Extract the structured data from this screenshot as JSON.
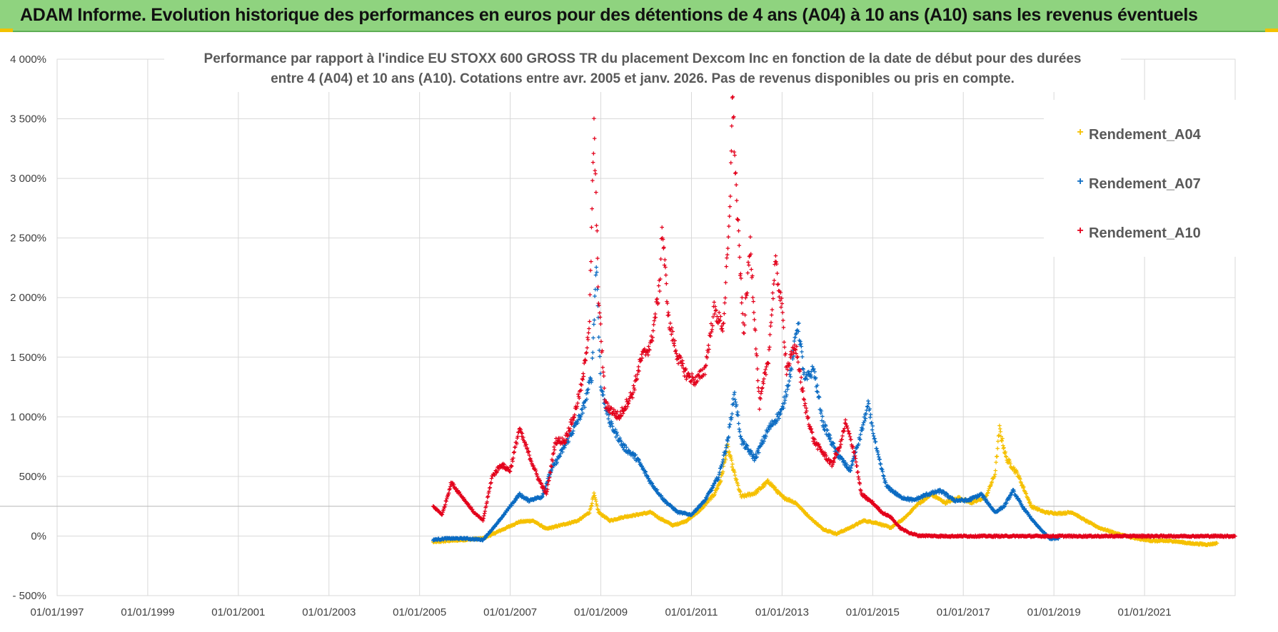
{
  "banner": {
    "title": "ADAM Informe. Evolution historique des performances en euros pour des détentions de 4 ans (A04) à 10 ans (A10) sans les revenus éventuels"
  },
  "colors": {
    "banner_bg": "#8fd37f",
    "series_a04": "#f5c000",
    "series_a07": "#0b6bc2",
    "series_a10": "#e3001b",
    "grid": "#d9d9d9"
  },
  "chart_data": {
    "type": "scatter",
    "title": "Performance par rapport à l'indice EU STOXX 600 GROSS TR  du placement Dexcom Inc en fonction de la date de début pour des durées entre 4 (A04) et 10 ans (A10). Cotations entre avr. 2005 et janv. 2026. Pas de revenus disponibles ou pris en compte.",
    "title_lines": [
      "Performance par rapport à l'indice EU STOXX 600 GROSS TR  du placement Dexcom Inc en fonction de la date de début pour des durées",
      "entre 4 (A04) et 10 ans (A10). Cotations entre avr. 2005 et janv. 2026. Pas de revenus disponibles ou pris en compte."
    ],
    "xlabel": "",
    "ylabel": "",
    "xlim": [
      1997.0,
      2023.0
    ],
    "ylim": [
      -500,
      4000
    ],
    "x_ticks": [
      1997,
      1999,
      2001,
      2003,
      2005,
      2007,
      2009,
      2011,
      2013,
      2015,
      2017,
      2019,
      2021
    ],
    "x_tick_labels": [
      "01/01/1997",
      "01/01/1999",
      "01/01/2001",
      "01/01/2003",
      "01/01/2005",
      "01/01/2007",
      "01/01/2009",
      "01/01/2011",
      "01/01/2013",
      "01/01/2015",
      "01/01/2017",
      "01/01/2019",
      "01/01/2021"
    ],
    "y_ticks": [
      -500,
      0,
      500,
      1000,
      1500,
      2000,
      2500,
      3000,
      3500,
      4000
    ],
    "y_tick_labels": [
      "- 500%",
      "0%",
      "500%",
      "1 000%",
      "1 500%",
      "2 000%",
      "2 500%",
      "3 000%",
      "3 500%",
      "4 000%"
    ],
    "reference_line_y": 250,
    "grid": true,
    "legend_position": "top-right",
    "series": [
      {
        "name": "Rendement_A04",
        "color": "#f5c000",
        "points": [
          [
            2005.3,
            -50
          ],
          [
            2005.6,
            -40
          ],
          [
            2006.0,
            -30
          ],
          [
            2006.4,
            -20
          ],
          [
            2006.8,
            50
          ],
          [
            2007.2,
            120
          ],
          [
            2007.5,
            130
          ],
          [
            2007.8,
            60
          ],
          [
            2008.2,
            100
          ],
          [
            2008.5,
            130
          ],
          [
            2008.75,
            200
          ],
          [
            2008.85,
            350
          ],
          [
            2008.95,
            200
          ],
          [
            2009.2,
            130
          ],
          [
            2009.5,
            160
          ],
          [
            2009.8,
            180
          ],
          [
            2010.1,
            200
          ],
          [
            2010.3,
            150
          ],
          [
            2010.6,
            90
          ],
          [
            2010.9,
            130
          ],
          [
            2011.2,
            220
          ],
          [
            2011.5,
            350
          ],
          [
            2011.65,
            470
          ],
          [
            2011.8,
            750
          ],
          [
            2011.95,
            520
          ],
          [
            2012.1,
            330
          ],
          [
            2012.4,
            360
          ],
          [
            2012.7,
            460
          ],
          [
            2013.0,
            330
          ],
          [
            2013.3,
            280
          ],
          [
            2013.6,
            160
          ],
          [
            2013.9,
            60
          ],
          [
            2014.2,
            20
          ],
          [
            2014.5,
            70
          ],
          [
            2014.8,
            130
          ],
          [
            2015.1,
            110
          ],
          [
            2015.4,
            70
          ],
          [
            2015.7,
            150
          ],
          [
            2016.0,
            270
          ],
          [
            2016.3,
            350
          ],
          [
            2016.6,
            280
          ],
          [
            2016.9,
            320
          ],
          [
            2017.2,
            280
          ],
          [
            2017.5,
            330
          ],
          [
            2017.7,
            520
          ],
          [
            2017.8,
            900
          ],
          [
            2017.95,
            650
          ],
          [
            2018.2,
            520
          ],
          [
            2018.5,
            250
          ],
          [
            2018.8,
            200
          ],
          [
            2019.1,
            190
          ],
          [
            2019.4,
            200
          ],
          [
            2019.7,
            130
          ],
          [
            2020.0,
            70
          ],
          [
            2020.4,
            20
          ],
          [
            2020.8,
            -20
          ],
          [
            2021.2,
            -40
          ],
          [
            2021.6,
            -40
          ],
          [
            2022.0,
            -60
          ],
          [
            2022.4,
            -70
          ],
          [
            2022.6,
            -60
          ]
        ]
      },
      {
        "name": "Rendement_A07",
        "color": "#0b6bc2",
        "points": [
          [
            2005.3,
            -30
          ],
          [
            2005.6,
            -20
          ],
          [
            2006.0,
            -20
          ],
          [
            2006.4,
            -30
          ],
          [
            2006.7,
            100
          ],
          [
            2007.0,
            250
          ],
          [
            2007.2,
            350
          ],
          [
            2007.4,
            300
          ],
          [
            2007.7,
            330
          ],
          [
            2007.9,
            550
          ],
          [
            2008.1,
            680
          ],
          [
            2008.4,
            900
          ],
          [
            2008.6,
            1050
          ],
          [
            2008.8,
            1350
          ],
          [
            2008.9,
            2300
          ],
          [
            2009.0,
            1250
          ],
          [
            2009.2,
            950
          ],
          [
            2009.5,
            750
          ],
          [
            2009.8,
            650
          ],
          [
            2010.1,
            450
          ],
          [
            2010.4,
            300
          ],
          [
            2010.7,
            200
          ],
          [
            2011.0,
            180
          ],
          [
            2011.3,
            300
          ],
          [
            2011.6,
            500
          ],
          [
            2011.8,
            800
          ],
          [
            2011.95,
            1200
          ],
          [
            2012.1,
            800
          ],
          [
            2012.4,
            650
          ],
          [
            2012.7,
            900
          ],
          [
            2013.0,
            1050
          ],
          [
            2013.2,
            1400
          ],
          [
            2013.35,
            1800
          ],
          [
            2013.5,
            1300
          ],
          [
            2013.7,
            1400
          ],
          [
            2013.9,
            950
          ],
          [
            2014.2,
            700
          ],
          [
            2014.5,
            550
          ],
          [
            2014.7,
            800
          ],
          [
            2014.9,
            1100
          ],
          [
            2015.1,
            700
          ],
          [
            2015.3,
            420
          ],
          [
            2015.6,
            330
          ],
          [
            2015.9,
            300
          ],
          [
            2016.2,
            350
          ],
          [
            2016.5,
            380
          ],
          [
            2016.8,
            300
          ],
          [
            2017.1,
            300
          ],
          [
            2017.4,
            350
          ],
          [
            2017.7,
            200
          ],
          [
            2017.9,
            250
          ],
          [
            2018.1,
            380
          ],
          [
            2018.3,
            250
          ],
          [
            2018.6,
            100
          ],
          [
            2018.9,
            -20
          ],
          [
            2019.1,
            -20
          ]
        ]
      },
      {
        "name": "Rendement_A10",
        "color": "#e3001b",
        "points": [
          [
            2005.3,
            250
          ],
          [
            2005.5,
            180
          ],
          [
            2005.7,
            450
          ],
          [
            2006.0,
            300
          ],
          [
            2006.2,
            200
          ],
          [
            2006.4,
            130
          ],
          [
            2006.6,
            500
          ],
          [
            2006.8,
            600
          ],
          [
            2007.0,
            550
          ],
          [
            2007.2,
            900
          ],
          [
            2007.4,
            700
          ],
          [
            2007.6,
            500
          ],
          [
            2007.8,
            350
          ],
          [
            2008.0,
            800
          ],
          [
            2008.2,
            800
          ],
          [
            2008.4,
            1000
          ],
          [
            2008.6,
            1300
          ],
          [
            2008.75,
            1800
          ],
          [
            2008.85,
            3450
          ],
          [
            2008.95,
            2000
          ],
          [
            2009.1,
            1100
          ],
          [
            2009.4,
            1000
          ],
          [
            2009.7,
            1200
          ],
          [
            2009.9,
            1500
          ],
          [
            2010.1,
            1600
          ],
          [
            2010.3,
            2100
          ],
          [
            2010.35,
            2600
          ],
          [
            2010.5,
            1800
          ],
          [
            2010.7,
            1500
          ],
          [
            2010.9,
            1350
          ],
          [
            2011.1,
            1300
          ],
          [
            2011.3,
            1400
          ],
          [
            2011.5,
            1900
          ],
          [
            2011.7,
            1750
          ],
          [
            2011.85,
            2700
          ],
          [
            2011.9,
            3720
          ],
          [
            2012.0,
            2800
          ],
          [
            2012.15,
            1700
          ],
          [
            2012.3,
            2450
          ],
          [
            2012.5,
            1100
          ],
          [
            2012.7,
            1500
          ],
          [
            2012.85,
            2300
          ],
          [
            2013.0,
            1900
          ],
          [
            2013.1,
            1400
          ],
          [
            2013.3,
            1600
          ],
          [
            2013.5,
            1100
          ],
          [
            2013.7,
            800
          ],
          [
            2013.9,
            700
          ],
          [
            2014.1,
            600
          ],
          [
            2014.3,
            780
          ],
          [
            2014.4,
            950
          ],
          [
            2014.6,
            700
          ],
          [
            2014.75,
            350
          ],
          [
            2015.0,
            280
          ],
          [
            2015.2,
            200
          ],
          [
            2015.4,
            160
          ],
          [
            2015.6,
            70
          ],
          [
            2015.8,
            30
          ],
          [
            2016.0,
            5
          ],
          [
            2016.5,
            0
          ],
          [
            2017.0,
            0
          ],
          [
            2018.0,
            0
          ],
          [
            2019.0,
            0
          ],
          [
            2020.0,
            0
          ],
          [
            2021.0,
            0
          ],
          [
            2022.0,
            0
          ],
          [
            2023.0,
            0
          ]
        ]
      }
    ]
  }
}
